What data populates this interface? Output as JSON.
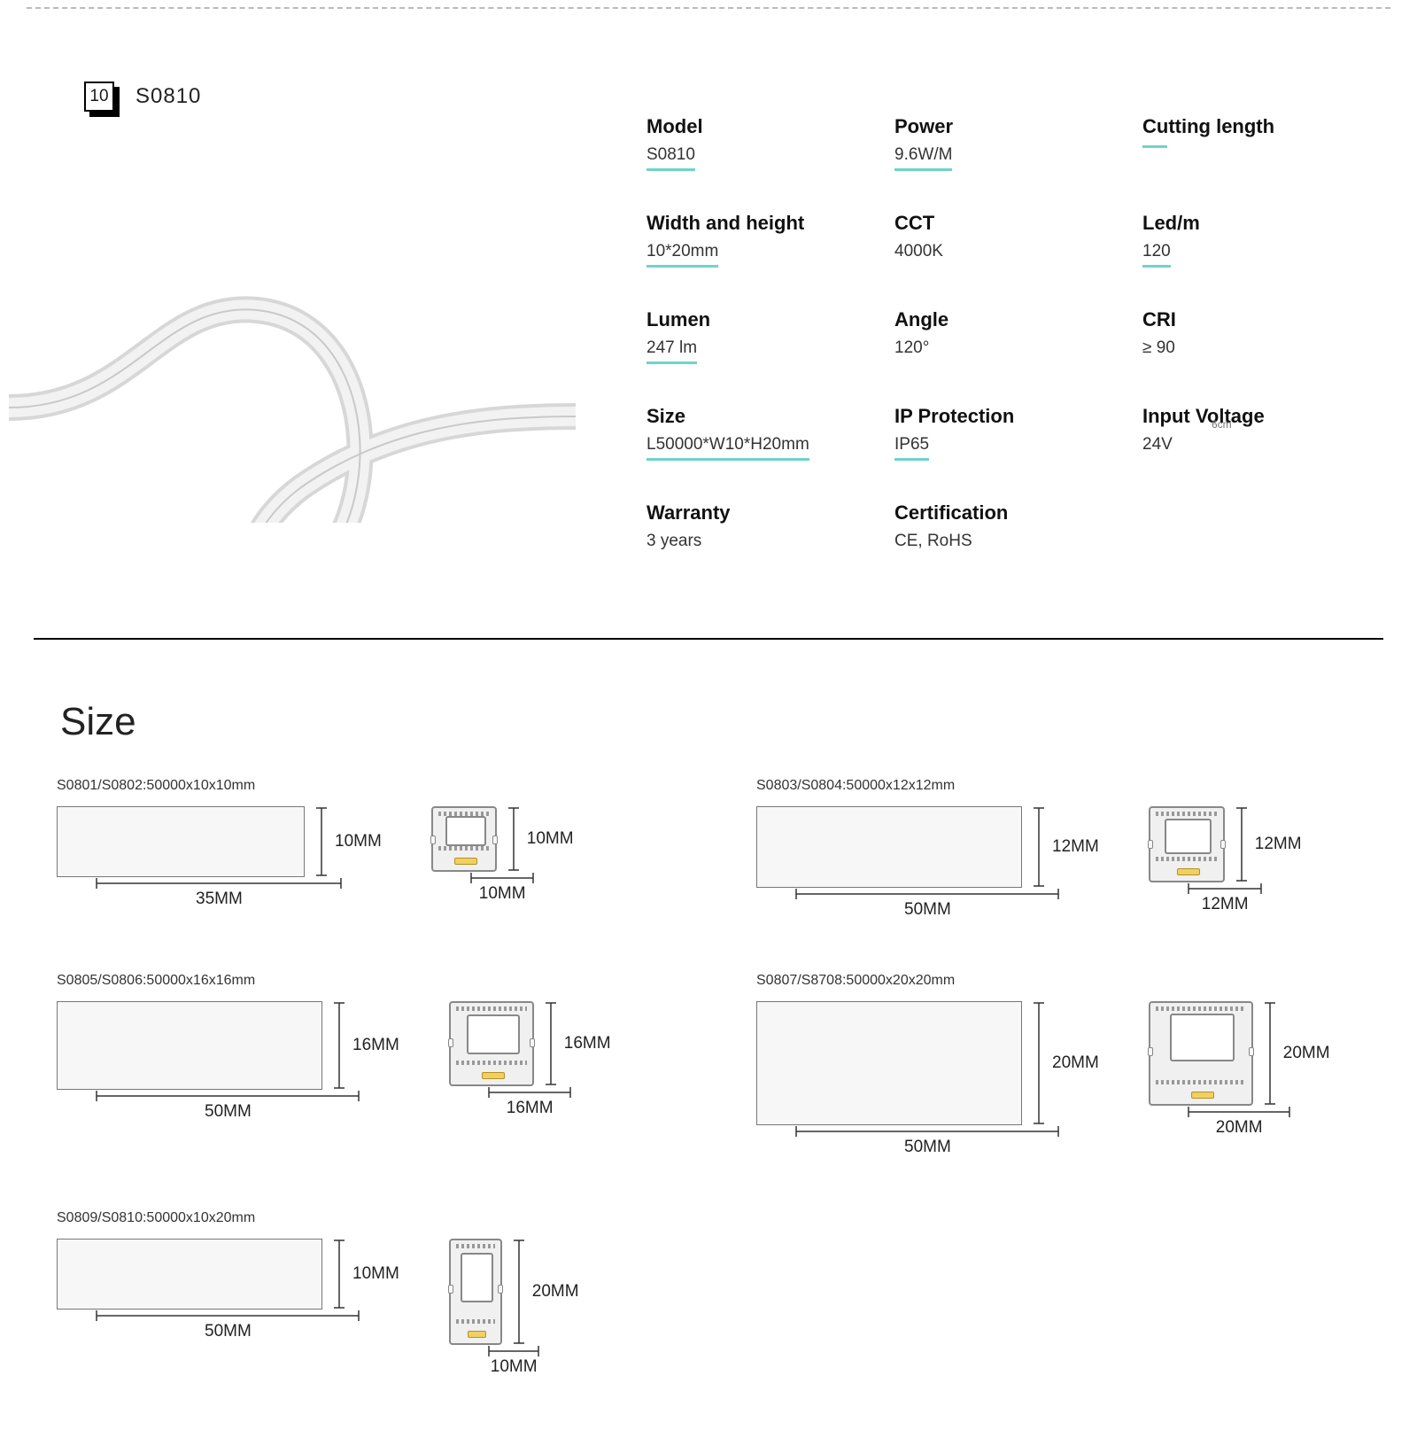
{
  "header": {
    "badge_number": "10",
    "product_code": "S0810"
  },
  "specs": [
    {
      "label": "Model",
      "value": "S0810",
      "underline": true
    },
    {
      "label": "Power",
      "value": "9.6W/M",
      "underline": true
    },
    {
      "label": "Cutting length",
      "value": "",
      "bar_only": true
    },
    {
      "label": "Width and height",
      "value": "10*20mm",
      "underline": true
    },
    {
      "label": "CCT",
      "value": "4000K",
      "underline": false
    },
    {
      "label": "Led/m",
      "value": "120",
      "underline": true
    },
    {
      "label": "Lumen",
      "value": "247 lm",
      "underline": true
    },
    {
      "label": "Angle",
      "value": "120°",
      "underline": false
    },
    {
      "label": "CRI",
      "value": "≥ 90",
      "underline": false
    },
    {
      "label": "Size",
      "value": "L50000*W10*H20mm",
      "underline": true
    },
    {
      "label": "IP Protection",
      "value": "IP65",
      "underline": true
    },
    {
      "label": "Input Voltage",
      "value": "24V",
      "underline": false
    },
    {
      "label": "Warranty",
      "value": "3 years",
      "underline": false
    },
    {
      "label": "Certification",
      "value": "CE, RoHS",
      "underline": false
    }
  ],
  "floating_6cm": "6cm",
  "size_section_title": "Size",
  "size_diagrams": [
    {
      "label": "S0801/S0802:50000x10x10mm",
      "rect_w": 280,
      "rect_h": 80,
      "rect_w_label": "35MM",
      "rect_h_label": "10MM",
      "profile_w": 74,
      "profile_h": 74,
      "profile_w_label": "10MM",
      "profile_h_label": "10MM",
      "inner_top_pct": 12
    },
    {
      "label": "S0803/S0804:50000x12x12mm",
      "rect_w": 300,
      "rect_h": 92,
      "rect_w_label": "50MM",
      "rect_h_label": "12MM",
      "profile_w": 86,
      "profile_h": 86,
      "profile_w_label": "12MM",
      "profile_h_label": "12MM",
      "inner_top_pct": 14
    },
    {
      "label": "S0805/S0806:50000x16x16mm",
      "rect_w": 300,
      "rect_h": 100,
      "rect_w_label": "50MM",
      "rect_h_label": "16MM",
      "profile_w": 96,
      "profile_h": 96,
      "profile_w_label": "16MM",
      "profile_h_label": "16MM",
      "inner_top_pct": 14
    },
    {
      "label": "S0807/S8708:50000x20x20mm",
      "rect_w": 300,
      "rect_h": 140,
      "rect_w_label": "50MM",
      "rect_h_label": "20MM",
      "profile_w": 118,
      "profile_h": 118,
      "profile_w_label": "20MM",
      "profile_h_label": "20MM",
      "inner_top_pct": 10
    },
    {
      "label": "S0809/S0810:50000x10x20mm",
      "rect_w": 300,
      "rect_h": 80,
      "rect_w_label": "50MM",
      "rect_h_label": "10MM",
      "profile_w": 60,
      "profile_h": 120,
      "profile_w_label": "10MM",
      "profile_h_label": "20MM",
      "inner_top_pct": 12
    }
  ],
  "colors": {
    "teal": "#6fd4c8",
    "box_fill": "#f7f7f7",
    "box_border": "#777777",
    "led_chip": "#f0d060"
  }
}
